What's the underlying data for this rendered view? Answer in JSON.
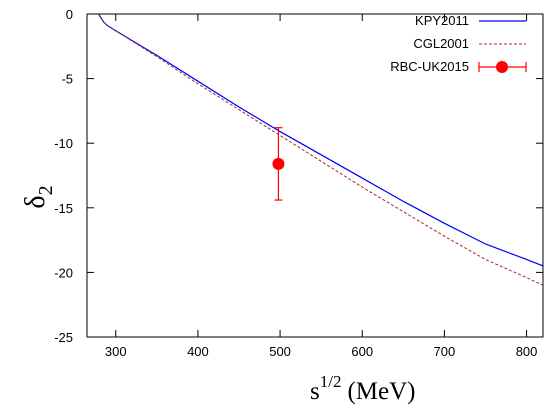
{
  "chart_data": {
    "type": "line",
    "xlabel": {
      "base": "s",
      "sup": "1/2",
      "unit": "(MeV)"
    },
    "ylabel": {
      "base": "δ",
      "sub": "2"
    },
    "xlim": [
      265,
      820
    ],
    "ylim": [
      -25,
      0
    ],
    "x_ticks": [
      300,
      400,
      500,
      600,
      700,
      800
    ],
    "y_ticks": [
      0,
      -5,
      -10,
      -15,
      -20,
      -25
    ],
    "grid": false,
    "legend_position": "top-right",
    "colors": {
      "kpy": "#0000ff",
      "cgl": "#a52a2a",
      "rbc": "#ff0000"
    },
    "series": [
      {
        "name": "KPY2011",
        "style": "solid",
        "points": [
          [
            279.1,
            0
          ],
          [
            285,
            -0.6
          ],
          [
            290,
            -0.9
          ],
          [
            300,
            -1.3
          ],
          [
            350,
            -3.2
          ],
          [
            400,
            -5.2
          ],
          [
            450,
            -7.2
          ],
          [
            500,
            -9.1
          ],
          [
            550,
            -10.9
          ],
          [
            600,
            -12.7
          ],
          [
            650,
            -14.5
          ],
          [
            700,
            -16.2
          ],
          [
            750,
            -17.8
          ],
          [
            800,
            -19.0
          ],
          [
            820,
            -19.5
          ]
        ]
      },
      {
        "name": "CGL2001",
        "style": "dashed",
        "points": [
          [
            279.1,
            0
          ],
          [
            285,
            -0.6
          ],
          [
            290,
            -0.9
          ],
          [
            300,
            -1.3
          ],
          [
            350,
            -3.3
          ],
          [
            400,
            -5.4
          ],
          [
            450,
            -7.4
          ],
          [
            500,
            -9.4
          ],
          [
            550,
            -11.4
          ],
          [
            600,
            -13.4
          ],
          [
            650,
            -15.3
          ],
          [
            700,
            -17.2
          ],
          [
            750,
            -19.0
          ],
          [
            800,
            -20.4
          ],
          [
            820,
            -21.0
          ]
        ]
      }
    ],
    "points": [
      {
        "name": "RBC-UK2015",
        "x": 498,
        "y": -11.6,
        "yerr_low": 2.8,
        "yerr_high": 2.8
      }
    ]
  }
}
